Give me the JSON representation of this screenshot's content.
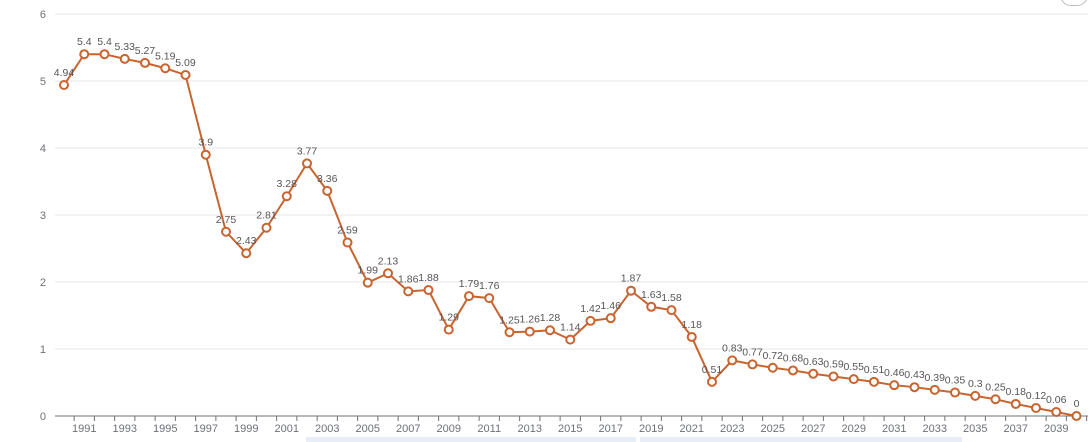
{
  "chart_data": {
    "type": "line",
    "title": "",
    "xlabel": "",
    "ylabel": "",
    "ylim": [
      0,
      6
    ],
    "y_ticks": [
      "0",
      "1",
      "2",
      "3",
      "4",
      "5",
      "6"
    ],
    "x": [
      1990,
      1991,
      1992,
      1993,
      1994,
      1995,
      1996,
      1997,
      1998,
      1999,
      2000,
      2001,
      2002,
      2003,
      2004,
      2005,
      2006,
      2007,
      2008,
      2009,
      2010,
      2011,
      2012,
      2013,
      2014,
      2015,
      2016,
      2017,
      2018,
      2019,
      2020,
      2021,
      2022,
      2023,
      2024,
      2025,
      2026,
      2027,
      2028,
      2029,
      2030,
      2031,
      2032,
      2033,
      2034,
      2035,
      2036,
      2037,
      2038,
      2039,
      2040
    ],
    "x_tick_labels": [
      "1991",
      "1993",
      "1995",
      "1997",
      "1999",
      "2001",
      "2003",
      "2005",
      "2007",
      "2009",
      "2011",
      "2013",
      "2015",
      "2017",
      "2019",
      "2021",
      "2023",
      "2025",
      "2027",
      "2029",
      "2031",
      "2033",
      "2035",
      "2037",
      "2039"
    ],
    "series": [
      {
        "color": "#c8642f",
        "values": [
          4.94,
          5.4,
          5.4,
          5.33,
          5.27,
          5.19,
          5.09,
          3.9,
          2.75,
          2.43,
          2.81,
          3.28,
          3.77,
          3.36,
          2.59,
          1.99,
          2.13,
          1.86,
          1.88,
          1.29,
          1.79,
          1.76,
          1.25,
          1.26,
          1.28,
          1.14,
          1.42,
          1.46,
          1.87,
          1.63,
          1.58,
          1.18,
          0.51,
          0.83,
          0.77,
          0.72,
          0.68,
          0.63,
          0.59,
          0.55,
          0.51,
          0.46,
          0.43,
          0.39,
          0.35,
          0.3,
          0.25,
          0.18,
          0.12,
          0.06,
          0
        ],
        "labels": [
          "4.94",
          "5.4",
          "5.4",
          "5.33",
          "5.27",
          "5.19",
          "5.09",
          "3.9",
          "2.75",
          "2.43",
          "2.81",
          "3.28",
          "3.77",
          "3.36",
          "2.59",
          "1.99",
          "2.13",
          "1.86",
          "1.88",
          "1.29",
          "1.79",
          "1.76",
          "1.25",
          "1.26",
          "1.28",
          "1.14",
          "1.42",
          "1.46",
          "1.87",
          "1.63",
          "1.58",
          "1.18",
          "0.51",
          "0.83",
          "0.77",
          "0.72",
          "0.68",
          "0.63",
          "0.59",
          "0.55",
          "0.51",
          "0.46",
          "0.43",
          "0.39",
          "0.35",
          "0.3",
          "0.25",
          "0.18",
          "0.12",
          "0.06",
          "0"
        ]
      }
    ],
    "grid": true,
    "legend": "none"
  }
}
